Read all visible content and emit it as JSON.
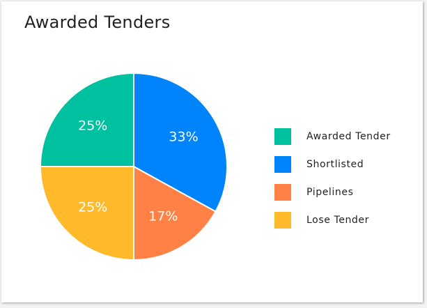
{
  "card": {
    "title": "Awarded Tenders"
  },
  "chart_data": {
    "type": "pie",
    "title": "Awarded Tenders",
    "slices": [
      {
        "name": "Awarded Tender",
        "value": 25,
        "label": "25%",
        "color": "#00c19f"
      },
      {
        "name": "Shortlisted",
        "value": 33,
        "label": "33%",
        "color": "#0084fb"
      },
      {
        "name": "Pipelines",
        "value": 17,
        "label": "17%",
        "color": "#ff8146"
      },
      {
        "name": "Lose Tender",
        "value": 25,
        "label": "25%",
        "color": "#ffb92b"
      }
    ],
    "legend_position": "right"
  }
}
